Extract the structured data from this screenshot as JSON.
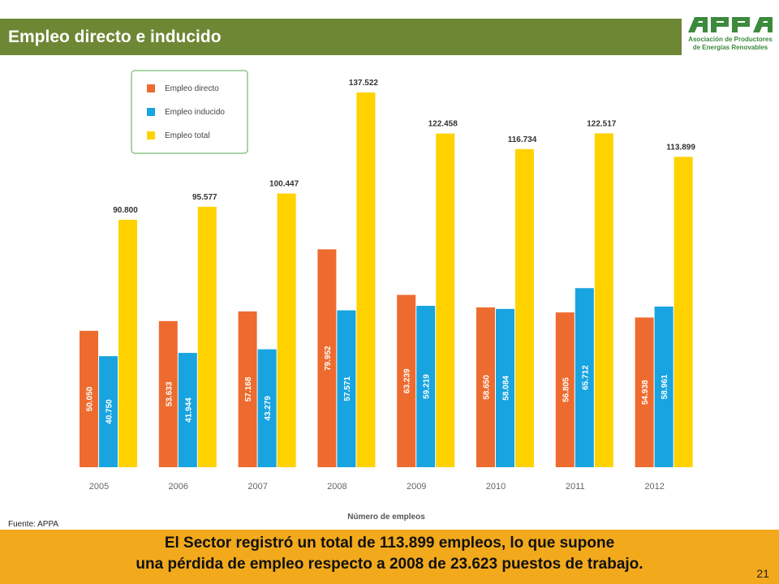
{
  "header": {
    "title": "Empleo directo e inducido"
  },
  "logo": {
    "mark": "APPA",
    "line1": "Asociación de Productores",
    "line2": "de Energías Renovables",
    "color": "#3c8a3c"
  },
  "chart_data": {
    "type": "bar",
    "categories": [
      "2005",
      "2006",
      "2007",
      "2008",
      "2009",
      "2010",
      "2011",
      "2012"
    ],
    "series": [
      {
        "name": "Empleo directo",
        "color": "#ee6b2f",
        "values": [
          50050,
          53633,
          57168,
          79952,
          63239,
          58650,
          56805,
          54938
        ],
        "labels": [
          "50.050",
          "53.633",
          "57.168",
          "79.952",
          "63.239",
          "58.650",
          "56.805",
          "54.938"
        ]
      },
      {
        "name": "Empleo inducido",
        "color": "#18a4e0",
        "values": [
          40750,
          41944,
          43279,
          57571,
          59219,
          58084,
          65712,
          58961
        ],
        "labels": [
          "40.750",
          "41.944",
          "43.279",
          "57.571",
          "59.219",
          "58.084",
          "65.712",
          "58.961"
        ]
      },
      {
        "name": "Empleo total",
        "color": "#ffd200",
        "values": [
          90800,
          95577,
          100447,
          137522,
          122458,
          116734,
          122517,
          113899
        ],
        "labels": [
          "90.800",
          "95.577",
          "100.447",
          "137.522",
          "122.458",
          "116.734",
          "122.517",
          "113.899"
        ]
      }
    ],
    "xlabel": "Número de empleos",
    "legend_position": "top-left",
    "grid": false
  },
  "source": "Fuente: APPA",
  "footer": {
    "line1": "El Sector registró un total de 113.899 empleos, lo que supone",
    "line2": "una pérdida de empleo respecto a 2008 de 23.623 puestos de trabajo."
  },
  "page_number": "21"
}
